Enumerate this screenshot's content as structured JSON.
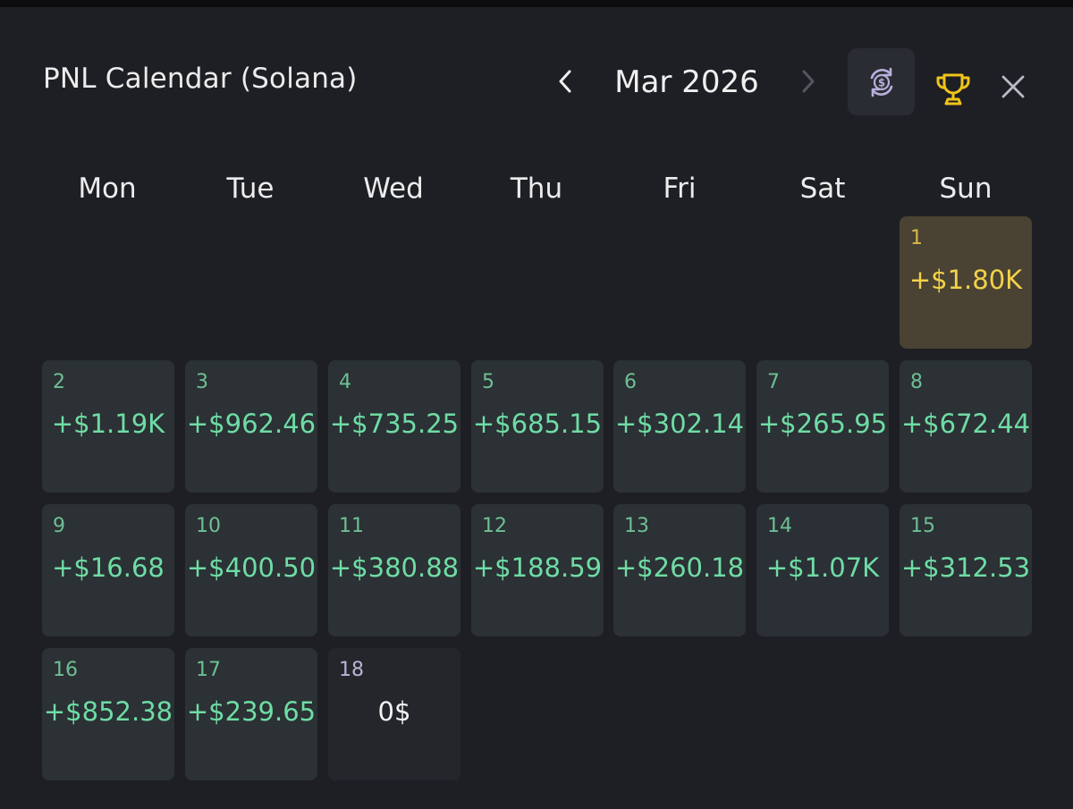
{
  "header": {
    "title": "PNL Calendar (Solana)",
    "month_label": "Mar 2026"
  },
  "icons": {
    "prev": "chevron-left-icon",
    "next": "chevron-right-icon",
    "currency": "currency-swap-icon",
    "trophy": "trophy-icon",
    "close": "close-icon"
  },
  "colors": {
    "background": "#1e1f24",
    "profit_text": "#6fdca5",
    "best_day_bg": "#4a4333",
    "best_day_text": "#f3d24a",
    "trophy": "#f0c419"
  },
  "weekdays": [
    "Mon",
    "Tue",
    "Wed",
    "Thu",
    "Fri",
    "Sat",
    "Sun"
  ],
  "days": [
    {
      "day": "1",
      "value": "+$1.80K",
      "state": "best"
    },
    {
      "day": "2",
      "value": "+$1.19K",
      "state": "profit"
    },
    {
      "day": "3",
      "value": "+$962.46",
      "state": "profit"
    },
    {
      "day": "4",
      "value": "+$735.25",
      "state": "profit"
    },
    {
      "day": "5",
      "value": "+$685.15",
      "state": "profit"
    },
    {
      "day": "6",
      "value": "+$302.14",
      "state": "profit"
    },
    {
      "day": "7",
      "value": "+$265.95",
      "state": "profit"
    },
    {
      "day": "8",
      "value": "+$672.44",
      "state": "profit"
    },
    {
      "day": "9",
      "value": "+$16.68",
      "state": "profit"
    },
    {
      "day": "10",
      "value": "+$400.50",
      "state": "profit"
    },
    {
      "day": "11",
      "value": "+$380.88",
      "state": "profit"
    },
    {
      "day": "12",
      "value": "+$188.59",
      "state": "profit"
    },
    {
      "day": "13",
      "value": "+$260.18",
      "state": "profit"
    },
    {
      "day": "14",
      "value": "+$1.07K",
      "state": "profit2"
    },
    {
      "day": "15",
      "value": "+$312.53",
      "state": "profit"
    },
    {
      "day": "16",
      "value": "+$852.38",
      "state": "profit"
    },
    {
      "day": "17",
      "value": "+$239.65",
      "state": "profit"
    },
    {
      "day": "18",
      "value": "0$",
      "state": "zero"
    }
  ]
}
